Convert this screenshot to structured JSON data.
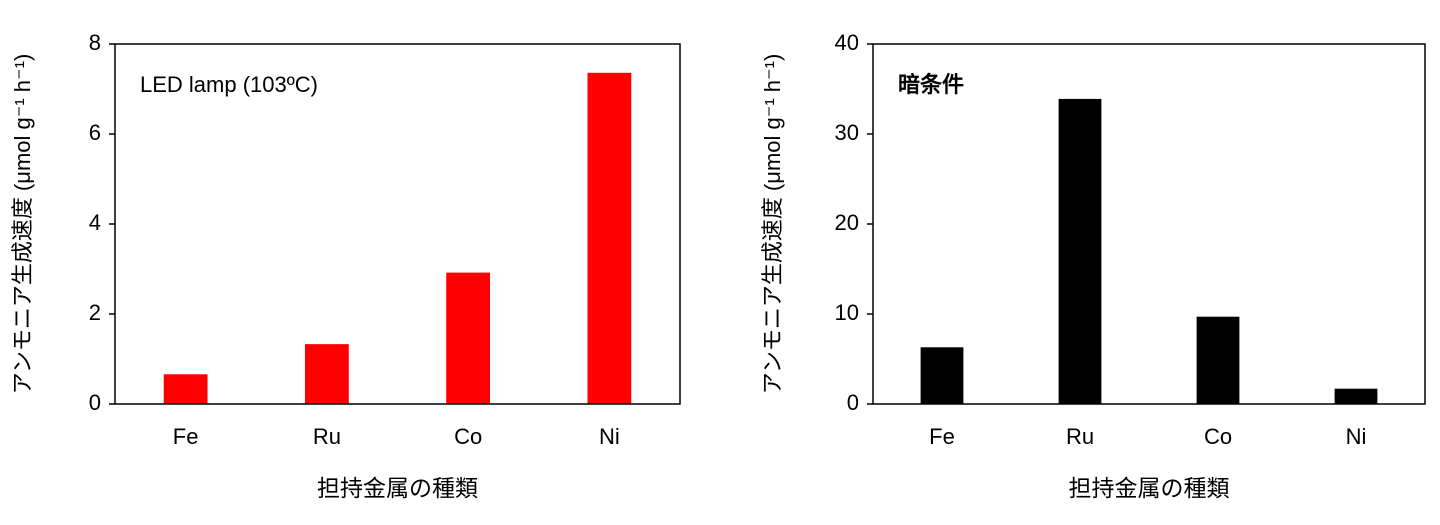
{
  "chart_data": [
    {
      "type": "bar",
      "annotation": "LED lamp (103ºC)",
      "annotation_color": "#ff0000",
      "annotation_bold": false,
      "y_label": "アンモニア生成速度 (μmol g⁻¹ h⁻¹)",
      "x_label": "担持金属の種類",
      "categories": [
        "Fe",
        "Ru",
        "Co",
        "Ni"
      ],
      "values": [
        0.66,
        1.33,
        2.92,
        7.36
      ],
      "color": "#ff0000",
      "ylim": [
        0,
        8
      ],
      "yticks": [
        0,
        2,
        4,
        6,
        8
      ],
      "grid": false
    },
    {
      "type": "bar",
      "annotation": "暗条件",
      "annotation_color": "#000000",
      "annotation_bold": true,
      "y_label": "アンモニア生成速度 (μmol g⁻¹ h⁻¹)",
      "x_label": "担持金属の種類",
      "categories": [
        "Fe",
        "Ru",
        "Co",
        "Ni"
      ],
      "values": [
        6.3,
        33.9,
        9.7,
        1.7
      ],
      "color": "#000000",
      "ylim": [
        0,
        40
      ],
      "yticks": [
        0,
        10,
        20,
        30,
        40
      ],
      "grid": false
    }
  ]
}
